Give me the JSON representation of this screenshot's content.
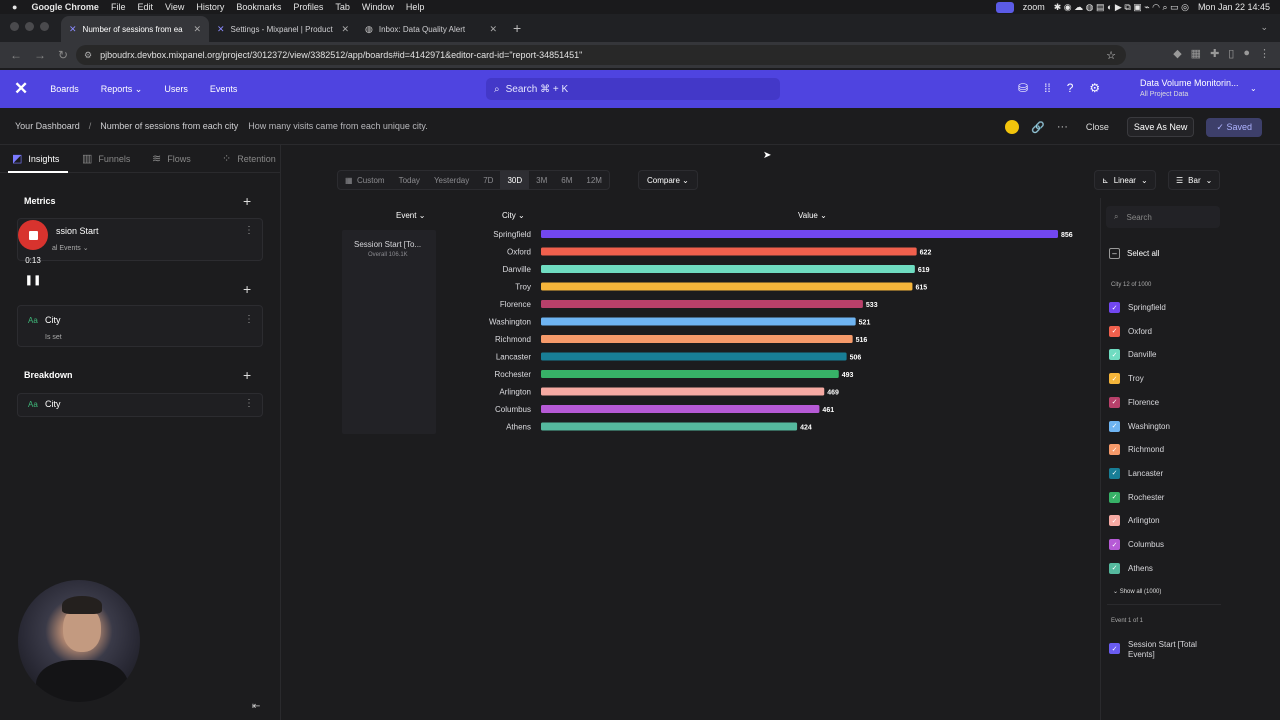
{
  "menubar": {
    "app": "Google Chrome",
    "menus": [
      "File",
      "Edit",
      "View",
      "History",
      "Bookmarks",
      "Profiles",
      "Tab",
      "Window",
      "Help"
    ],
    "zoom": "zoom",
    "clock": "Mon Jan 22  14:45"
  },
  "tabs": [
    {
      "label": "Number of sessions from ea",
      "active": true
    },
    {
      "label": "Settings - Mixpanel | Product",
      "active": false
    },
    {
      "label": "Inbox: Data Quality Alert",
      "active": false
    }
  ],
  "url": "pjboudrx.devbox.mixpanel.org/project/3012372/view/3382512/app/boards#id=4142971&editor-card-id=\"report-34851451\"",
  "appbar": {
    "nav": [
      "Boards",
      "Reports",
      "Users",
      "Events"
    ],
    "search": "Search ⌘ + K",
    "project": "Data Volume Monitorin...",
    "project_sub": "All Project Data"
  },
  "subbar": {
    "crumb": "Your Dashboard",
    "title": "Number of sessions from each city",
    "description": "How many visits came from each unique city.",
    "close": "Close",
    "save_as_new": "Save As New",
    "saved": "Saved"
  },
  "left": {
    "tabs": [
      "Insights",
      "Funnels",
      "Flows",
      "Retention"
    ],
    "metrics_label": "Metrics",
    "metric_name": "ssion Start",
    "metric_sub": "al Events",
    "filter_tag": "Aa",
    "filter_name": "City",
    "filter_sub": "Is set",
    "breakdown_label": "Breakdown",
    "breakdown_name": "City",
    "rec_time": "0:13"
  },
  "toolbar": {
    "dates": [
      "Custom",
      "Today",
      "Yesterday",
      "7D",
      "30D",
      "3M",
      "6M",
      "12M"
    ],
    "selected_date": "30D",
    "compare": "Compare",
    "scale": "Linear",
    "chart_type": "Bar"
  },
  "table": {
    "event_header": "Event",
    "city_header": "City",
    "value_header": "Value",
    "event_name": "Session Start [To...",
    "event_overall": "Overall  106.1K"
  },
  "chart_data": {
    "type": "bar",
    "categories": [
      "Springfield",
      "Oxford",
      "Danville",
      "Troy",
      "Florence",
      "Washington",
      "Richmond",
      "Lancaster",
      "Rochester",
      "Arlington",
      "Columbus",
      "Athens"
    ],
    "values": [
      856,
      622,
      619,
      615,
      533,
      521,
      516,
      506,
      493,
      469,
      461,
      424
    ],
    "colors": [
      "#7247f0",
      "#f0604d",
      "#6fdcc1",
      "#f5b53a",
      "#b8406a",
      "#6eb4f2",
      "#f69a6a",
      "#187e96",
      "#37b167",
      "#f6aaa3",
      "#b65ad6",
      "#55b99e"
    ],
    "max": 856,
    "orientation": "horizontal"
  },
  "right": {
    "search": "Search",
    "select_all": "Select all",
    "city_count": "City 12 of 1000",
    "show_all": "Show all (1000)",
    "event_count": "Event 1 of 1",
    "event_item": "Session Start [Total Events]"
  }
}
